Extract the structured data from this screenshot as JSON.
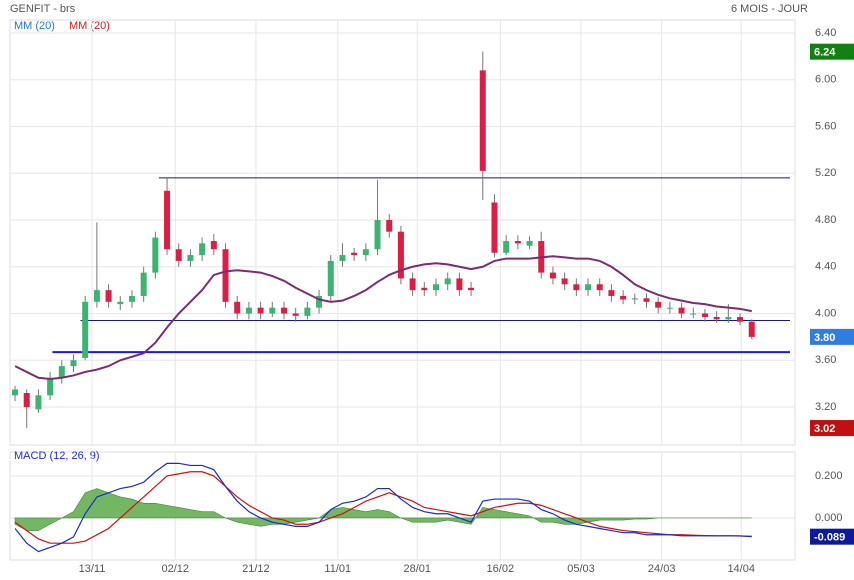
{
  "chart_data": {
    "type": "candlestick",
    "title": "GENFIT - brs",
    "subtitle": "6 MOIS - JOUR",
    "legend": [
      {
        "name": "MM (20)",
        "color": "#1e7ad8"
      },
      {
        "name": "MM (20)",
        "color": "#d02020"
      }
    ],
    "up_color": "#3cb371",
    "down_color": "#dc1e46",
    "xlim": [
      -0.43,
      66.7
    ],
    "xticks": [
      {
        "value": 6.58,
        "label": "13/11"
      },
      {
        "value": 13.7,
        "label": "02/12"
      },
      {
        "value": 20.6,
        "label": "21/12"
      },
      {
        "value": 27.6,
        "label": "11/01"
      },
      {
        "value": 34.4,
        "label": "28/01"
      },
      {
        "value": 41.5,
        "label": "16/02"
      },
      {
        "value": 48.4,
        "label": "05/03"
      },
      {
        "value": 55.3,
        "label": "24/03"
      },
      {
        "value": 62.1,
        "label": "14/04"
      }
    ],
    "ylim": [
      2.875,
      6.511
    ],
    "yticks": [
      {
        "value": 3.2,
        "label": "3.20"
      },
      {
        "value": 3.6,
        "label": "3.60"
      },
      {
        "value": 4.0,
        "label": "4.00"
      },
      {
        "value": 4.4,
        "label": "4.40"
      },
      {
        "value": 4.8,
        "label": "4.80"
      },
      {
        "value": 5.2,
        "label": "5.20"
      },
      {
        "value": 5.6,
        "label": "5.60"
      },
      {
        "value": 6.0,
        "label": "6.00"
      },
      {
        "value": 6.4,
        "label": "6.40"
      }
    ],
    "grid": true,
    "open": [
      3.3,
      3.32,
      3.18,
      3.3,
      3.45,
      3.55,
      3.62,
      4.1,
      4.2,
      4.08,
      4.1,
      4.15,
      4.35,
      5.05,
      4.55,
      4.45,
      4.5,
      4.62,
      4.55,
      4.1,
      4.0,
      4.05,
      4.0,
      4.05,
      4.0,
      3.98,
      4.05,
      4.15,
      4.45,
      4.52,
      4.5,
      4.55,
      4.8,
      4.7,
      4.3,
      4.22,
      4.2,
      4.25,
      4.3,
      4.22,
      6.08,
      4.95,
      4.52,
      4.62,
      4.58,
      4.62,
      4.35,
      4.3,
      4.25,
      4.2,
      4.25,
      4.2,
      4.15,
      4.12,
      4.13,
      4.1,
      4.05,
      4.05,
      4.0,
      4.0,
      3.97,
      3.95,
      3.97,
      3.93
    ],
    "high": [
      3.38,
      3.35,
      3.35,
      3.5,
      3.6,
      3.65,
      4.15,
      4.78,
      4.25,
      4.15,
      4.2,
      4.4,
      4.7,
      5.16,
      4.6,
      4.55,
      4.65,
      4.68,
      4.6,
      4.15,
      4.1,
      4.1,
      4.1,
      4.1,
      4.05,
      4.1,
      4.2,
      4.5,
      4.6,
      4.56,
      4.6,
      5.14,
      4.85,
      4.75,
      4.35,
      4.27,
      4.3,
      4.35,
      4.35,
      4.27,
      6.24,
      5.02,
      4.67,
      4.67,
      4.66,
      4.7,
      4.4,
      4.35,
      4.3,
      4.3,
      4.3,
      4.25,
      4.2,
      4.17,
      4.17,
      4.14,
      4.1,
      4.09,
      4.05,
      4.04,
      4.02,
      4.08,
      4.0,
      3.95
    ],
    "low": [
      3.25,
      3.02,
      3.15,
      3.26,
      3.4,
      3.5,
      3.6,
      4.05,
      4.05,
      4.03,
      4.05,
      4.1,
      4.3,
      4.5,
      4.4,
      4.4,
      4.45,
      4.5,
      4.05,
      3.95,
      3.95,
      3.95,
      3.97,
      3.95,
      3.93,
      3.95,
      4.0,
      4.1,
      4.4,
      4.45,
      4.45,
      4.5,
      4.65,
      4.25,
      4.15,
      4.15,
      4.15,
      4.2,
      4.15,
      4.15,
      4.97,
      4.48,
      4.5,
      4.55,
      4.55,
      4.3,
      4.25,
      4.2,
      4.15,
      4.15,
      4.15,
      4.1,
      4.08,
      4.08,
      4.05,
      4.0,
      4.0,
      3.96,
      3.96,
      3.93,
      3.92,
      3.92,
      3.9,
      3.78
    ],
    "close": [
      3.35,
      3.2,
      3.3,
      3.45,
      3.55,
      3.6,
      4.1,
      4.2,
      4.1,
      4.1,
      4.15,
      4.35,
      4.65,
      4.55,
      4.45,
      4.5,
      4.6,
      4.55,
      4.1,
      4.0,
      4.05,
      4.0,
      4.05,
      4.0,
      3.98,
      4.05,
      4.15,
      4.45,
      4.5,
      4.5,
      4.55,
      4.8,
      4.7,
      4.3,
      4.2,
      4.2,
      4.25,
      4.3,
      4.2,
      4.2,
      5.22,
      4.52,
      4.62,
      4.6,
      4.62,
      4.35,
      4.3,
      4.25,
      4.2,
      4.25,
      4.2,
      4.15,
      4.12,
      4.13,
      4.1,
      4.05,
      4.05,
      4.0,
      4.0,
      3.97,
      3.95,
      3.97,
      3.93,
      3.8
    ],
    "ma": {
      "color": "#7b2d6e",
      "values": [
        3.55,
        3.5,
        3.45,
        3.44,
        3.45,
        3.47,
        3.5,
        3.52,
        3.55,
        3.6,
        3.63,
        3.66,
        3.75,
        3.88,
        4.0,
        4.1,
        4.2,
        4.33,
        4.36,
        4.37,
        4.36,
        4.35,
        4.32,
        4.28,
        4.22,
        4.17,
        4.12,
        4.1,
        4.11,
        4.15,
        4.2,
        4.27,
        4.33,
        4.37,
        4.4,
        4.42,
        4.43,
        4.42,
        4.4,
        4.38,
        4.4,
        4.45,
        4.47,
        4.47,
        4.47,
        4.48,
        4.49,
        4.48,
        4.47,
        4.47,
        4.45,
        4.4,
        4.33,
        4.25,
        4.2,
        4.16,
        4.13,
        4.11,
        4.09,
        4.08,
        4.06,
        4.05,
        4.04,
        4.02
      ]
    },
    "levels": [
      {
        "value": 5.16,
        "from": 12.3,
        "color": "#1a1a6e"
      },
      {
        "value": 3.94,
        "from": 5.6,
        "color": "#1a1a8e"
      },
      {
        "value": 3.67,
        "from": 3.2,
        "color": "#1a1aee"
      }
    ],
    "price_labels": [
      {
        "value": 6.24,
        "label": "6.24",
        "color": "#138013"
      },
      {
        "value": 3.8,
        "label": "3.80",
        "color": "#2f7de0"
      },
      {
        "value": 3.02,
        "label": "3.02",
        "color": "#c01010"
      }
    ],
    "macd": {
      "title": "MACD (12, 26, 9)",
      "ylim": [
        -0.2,
        0.314
      ],
      "yticks": [
        {
          "value": 0.2,
          "label": "0.200"
        },
        {
          "value": 0,
          "label": "0.000"
        }
      ],
      "macd": {
        "color": "#1a2ad0",
        "values": [
          -0.05,
          -0.12,
          -0.16,
          -0.14,
          -0.12,
          -0.09,
          0.02,
          0.1,
          0.12,
          0.14,
          0.15,
          0.17,
          0.22,
          0.26,
          0.26,
          0.25,
          0.25,
          0.23,
          0.15,
          0.08,
          0.03,
          0.0,
          -0.02,
          -0.03,
          -0.04,
          -0.04,
          -0.02,
          0.04,
          0.07,
          0.08,
          0.1,
          0.14,
          0.14,
          0.09,
          0.05,
          0.03,
          0.02,
          0.02,
          0.0,
          -0.02,
          0.08,
          0.09,
          0.09,
          0.09,
          0.08,
          0.04,
          0.02,
          -0.01,
          -0.03,
          -0.04,
          -0.05,
          -0.06,
          -0.07,
          -0.07,
          -0.08,
          -0.08,
          -0.08,
          -0.085,
          -0.085,
          -0.085,
          -0.085,
          -0.085,
          -0.085,
          -0.089
        ]
      },
      "signal": {
        "color": "#d01010",
        "values": [
          -0.02,
          -0.06,
          -0.1,
          -0.12,
          -0.12,
          -0.12,
          -0.11,
          -0.08,
          -0.05,
          0.0,
          0.05,
          0.1,
          0.15,
          0.2,
          0.21,
          0.22,
          0.22,
          0.2,
          0.15,
          0.1,
          0.06,
          0.03,
          0.0,
          -0.01,
          -0.03,
          -0.03,
          -0.02,
          0.0,
          0.02,
          0.05,
          0.08,
          0.1,
          0.12,
          0.1,
          0.08,
          0.05,
          0.04,
          0.03,
          0.02,
          0.01,
          0.03,
          0.05,
          0.06,
          0.07,
          0.07,
          0.06,
          0.04,
          0.02,
          0.0,
          -0.02,
          -0.04,
          -0.05,
          -0.06,
          -0.065,
          -0.07,
          -0.075,
          -0.08,
          -0.08,
          -0.082,
          -0.084,
          -0.085,
          -0.085,
          -0.086,
          -0.087
        ]
      },
      "histogram": {
        "color": "#5aaa4a",
        "values": [
          -0.03,
          -0.06,
          -0.06,
          -0.03,
          0,
          0.03,
          0.12,
          0.14,
          0.12,
          0.1,
          0.09,
          0.07,
          0.07,
          0.06,
          0.05,
          0.04,
          0.03,
          0.03,
          0,
          -0.02,
          -0.03,
          -0.04,
          -0.03,
          -0.03,
          -0.02,
          -0.01,
          0,
          0.04,
          0.05,
          0.04,
          0.03,
          0.04,
          0.03,
          0,
          -0.02,
          -0.02,
          -0.02,
          -0.01,
          -0.02,
          -0.03,
          0.05,
          0.04,
          0.03,
          0.02,
          0.01,
          -0.02,
          -0.02,
          -0.03,
          -0.03,
          -0.02,
          -0.01,
          -0.01,
          -0.01,
          -0.005,
          -0.005,
          0,
          0,
          0,
          0,
          0,
          0,
          0,
          0,
          0
        ]
      },
      "last_label": {
        "value": -0.089,
        "label": "-0.089",
        "color": "#0c1a9a"
      }
    }
  }
}
